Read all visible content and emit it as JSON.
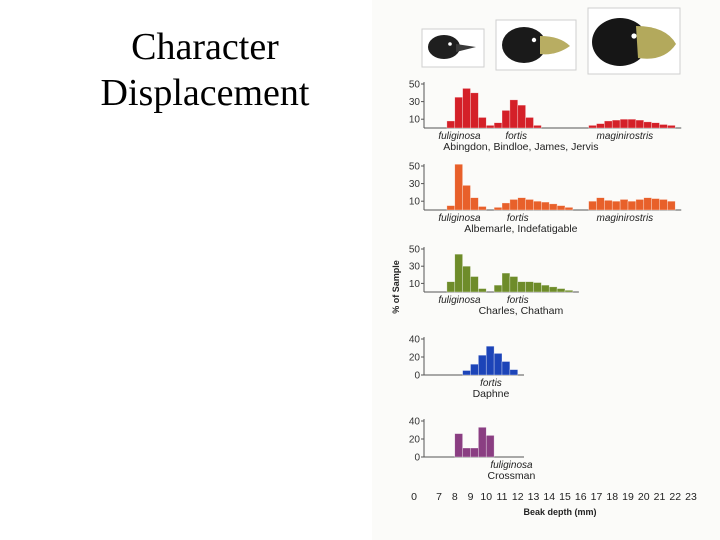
{
  "title_lines": [
    "Character",
    "Displacement"
  ],
  "chart_data": {
    "type": "bar",
    "xlabel": "Beak depth (mm)",
    "ylabel": "% of Sample",
    "x_ticks": [
      0,
      7,
      8,
      9,
      10,
      11,
      12,
      13,
      14,
      15,
      16,
      17,
      18,
      19,
      20,
      21,
      22,
      23
    ],
    "panels": [
      {
        "island": "Abingdon, Bindloe, James, Jervis",
        "y_ticks": [
          50,
          30,
          10
        ],
        "ylim": [
          0,
          50
        ],
        "color": "#d42028",
        "series": [
          {
            "name": "fuliginosa",
            "label_x": 8.3,
            "bins": [
              [
                7.5,
                8
              ],
              [
                8,
                35
              ],
              [
                8.5,
                45
              ],
              [
                9,
                40
              ],
              [
                9.5,
                12
              ],
              [
                10,
                3
              ]
            ]
          },
          {
            "name": "fortis",
            "label_x": 11.9,
            "bins": [
              [
                10.5,
                6
              ],
              [
                11,
                20
              ],
              [
                11.5,
                32
              ],
              [
                12,
                26
              ],
              [
                12.5,
                12
              ],
              [
                13,
                3
              ]
            ]
          },
          {
            "name": "maginirostris",
            "label_x": 18.8,
            "bins": [
              [
                16.5,
                3
              ],
              [
                17,
                5
              ],
              [
                17.5,
                8
              ],
              [
                18,
                9
              ],
              [
                18.5,
                10
              ],
              [
                19,
                10
              ],
              [
                19.5,
                9
              ],
              [
                20,
                7
              ],
              [
                20.5,
                6
              ],
              [
                21,
                4
              ],
              [
                21.5,
                3
              ]
            ]
          }
        ]
      },
      {
        "island": "Albemarle, Indefatigable",
        "y_ticks": [
          50,
          30,
          10
        ],
        "ylim": [
          0,
          50
        ],
        "color": "#e8602a",
        "series": [
          {
            "name": "fuliginosa",
            "label_x": 8.3,
            "bins": [
              [
                7.5,
                5
              ],
              [
                8,
                52
              ],
              [
                8.5,
                28
              ],
              [
                9,
                14
              ],
              [
                9.5,
                4
              ]
            ]
          },
          {
            "name": "fortis",
            "label_x": 12.0,
            "bins": [
              [
                10.5,
                3
              ],
              [
                11,
                8
              ],
              [
                11.5,
                12
              ],
              [
                12,
                14
              ],
              [
                12.5,
                12
              ],
              [
                13,
                10
              ],
              [
                13.5,
                9
              ],
              [
                14,
                7
              ],
              [
                14.5,
                5
              ],
              [
                15,
                3
              ]
            ]
          },
          {
            "name": "maginirostris",
            "label_x": 18.8,
            "bins": [
              [
                16.5,
                10
              ],
              [
                17,
                14
              ],
              [
                17.5,
                11
              ],
              [
                18,
                10
              ],
              [
                18.5,
                12
              ],
              [
                19,
                10
              ],
              [
                19.5,
                12
              ],
              [
                20,
                14
              ],
              [
                20.5,
                13
              ],
              [
                21,
                12
              ],
              [
                21.5,
                10
              ]
            ]
          }
        ]
      },
      {
        "island": "Charles, Chatham",
        "y_ticks": [
          50,
          30,
          10
        ],
        "ylim": [
          0,
          50
        ],
        "color": "#6e8c2a",
        "series": [
          {
            "name": "fuliginosa",
            "label_x": 8.3,
            "bins": [
              [
                7.5,
                12
              ],
              [
                8,
                44
              ],
              [
                8.5,
                30
              ],
              [
                9,
                18
              ],
              [
                9.5,
                4
              ]
            ]
          },
          {
            "name": "fortis",
            "label_x": 12.0,
            "bins": [
              [
                10.5,
                8
              ],
              [
                11,
                22
              ],
              [
                11.5,
                18
              ],
              [
                12,
                12
              ],
              [
                12.5,
                12
              ],
              [
                13,
                11
              ],
              [
                13.5,
                8
              ],
              [
                14,
                6
              ],
              [
                14.5,
                4
              ],
              [
                15,
                2
              ]
            ]
          }
        ]
      },
      {
        "island": "Daphne",
        "y_ticks": [
          40,
          20,
          0
        ],
        "ylim": [
          0,
          40
        ],
        "color": "#1c44b8",
        "series": [
          {
            "name": "fortis",
            "label_x": 10.3,
            "bins": [
              [
                8.5,
                5
              ],
              [
                9,
                12
              ],
              [
                9.5,
                22
              ],
              [
                10,
                32
              ],
              [
                10.5,
                24
              ],
              [
                11,
                15
              ],
              [
                11.5,
                6
              ]
            ]
          }
        ]
      },
      {
        "island": "Crossman",
        "y_ticks": [
          40,
          20,
          0
        ],
        "ylim": [
          0,
          40
        ],
        "color": "#8a3e82",
        "series": [
          {
            "name": "fuliginosa",
            "label_x": 11.6,
            "bins": [
              [
                8,
                26
              ],
              [
                8.5,
                10
              ],
              [
                9,
                10
              ],
              [
                9.5,
                33
              ],
              [
                10,
                24
              ]
            ]
          }
        ]
      }
    ]
  }
}
